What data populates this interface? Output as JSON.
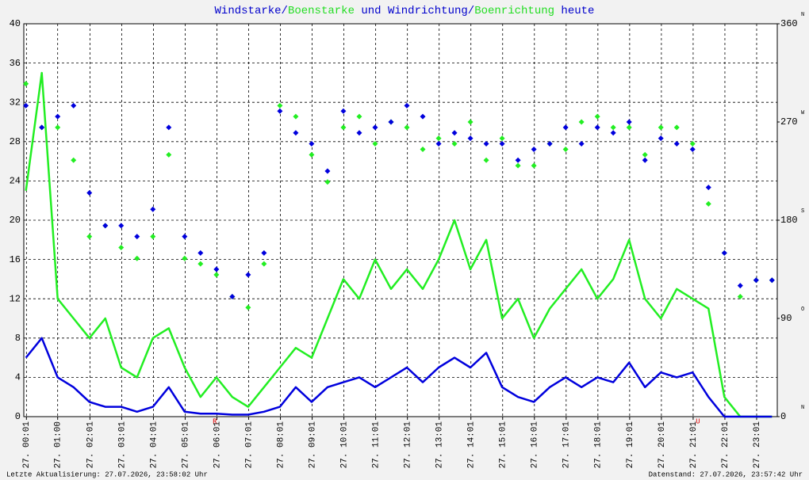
{
  "chart_data": {
    "type": "line",
    "title_parts": [
      {
        "text": "Windstarke",
        "color": "#0000cc"
      },
      {
        "text": "/",
        "color": "#0000cc"
      },
      {
        "text": "Boenstarke",
        "color": "#22dd22"
      },
      {
        "text": " und Windrichtung/",
        "color": "#0000cc"
      },
      {
        "text": "Boenrichtung",
        "color": "#22dd22"
      },
      {
        "text": " heute",
        "color": "#0000cc"
      }
    ],
    "x": [
      0,
      30,
      60,
      90,
      120,
      150,
      180,
      210,
      240,
      270,
      300,
      330,
      360,
      390,
      420,
      450,
      480,
      510,
      540,
      570,
      600,
      630,
      660,
      690,
      720,
      750,
      780,
      810,
      840,
      870,
      900,
      930,
      960,
      990,
      1020,
      1050,
      1080,
      1110,
      1140,
      1170,
      1200,
      1230,
      1260,
      1290,
      1320,
      1350,
      1380,
      1410
    ],
    "xlim": [
      -4,
      1420
    ],
    "xticks": [
      {
        "value": 1,
        "label": "27. 00:01"
      },
      {
        "value": 60,
        "label": "27. 01:00"
      },
      {
        "value": 121,
        "label": "27. 02:01"
      },
      {
        "value": 181,
        "label": "27. 03:01"
      },
      {
        "value": 241,
        "label": "27. 04:01"
      },
      {
        "value": 301,
        "label": "27. 05:01"
      },
      {
        "value": 361,
        "label": "27. 06:01"
      },
      {
        "value": 421,
        "label": "27. 07:01"
      },
      {
        "value": 481,
        "label": "27. 08:01"
      },
      {
        "value": 541,
        "label": "27. 09:01"
      },
      {
        "value": 601,
        "label": "27. 10:01"
      },
      {
        "value": 661,
        "label": "27. 11:01"
      },
      {
        "value": 721,
        "label": "27. 12:01"
      },
      {
        "value": 781,
        "label": "27. 13:01"
      },
      {
        "value": 841,
        "label": "27. 14:01"
      },
      {
        "value": 901,
        "label": "27. 15:01"
      },
      {
        "value": 961,
        "label": "27. 16:01"
      },
      {
        "value": 1021,
        "label": "27. 17:01"
      },
      {
        "value": 1081,
        "label": "27. 18:01"
      },
      {
        "value": 1141,
        "label": "27. 19:01"
      },
      {
        "value": 1201,
        "label": "27. 20:01"
      },
      {
        "value": 1261,
        "label": "27. 21:01"
      },
      {
        "value": 1321,
        "label": "27. 22:01"
      },
      {
        "value": 1381,
        "label": "27. 23:01"
      }
    ],
    "ylim": [
      0,
      40
    ],
    "yticks": [
      0,
      4,
      8,
      12,
      16,
      20,
      24,
      28,
      32,
      36,
      40
    ],
    "y2lim": [
      0,
      360
    ],
    "y2ticks": [
      0,
      90,
      180,
      270,
      360
    ],
    "y2tick_compass": [
      "N",
      "O",
      "S",
      "W",
      "N"
    ],
    "grid": true,
    "series": [
      {
        "name": "Boenstarke",
        "color": "#22ee22",
        "kind": "line",
        "values": [
          23,
          35,
          12,
          10,
          8,
          10,
          5,
          4,
          8,
          9,
          5,
          2,
          4,
          2,
          1,
          3,
          5,
          7,
          6,
          10,
          14,
          12,
          16,
          13,
          15,
          13,
          16,
          20,
          15,
          18,
          10,
          12,
          8,
          11,
          13,
          15,
          12,
          14,
          18,
          12,
          10,
          13,
          12,
          11,
          2,
          0,
          0,
          0
        ]
      },
      {
        "name": "Windstarke",
        "color": "#0000dd",
        "kind": "line",
        "values": [
          6,
          8,
          4,
          3,
          1.5,
          1,
          1,
          0.5,
          1,
          3,
          0.5,
          0.3,
          0.3,
          0.2,
          0.2,
          0.5,
          1,
          3,
          1.5,
          3,
          3.5,
          4,
          3,
          4,
          5,
          3.5,
          5,
          6,
          5,
          6.5,
          3,
          2,
          1.5,
          3,
          4,
          3,
          4,
          3.5,
          5.5,
          3,
          4.5,
          4,
          4.5,
          2,
          0,
          0,
          0,
          0
        ]
      },
      {
        "name": "Boenrichtung",
        "color": "#22ee22",
        "kind": "scatter",
        "axis": "y2",
        "values": [
          305,
          265,
          265,
          235,
          165,
          175,
          155,
          145,
          165,
          240,
          145,
          140,
          130,
          110,
          100,
          140,
          285,
          275,
          240,
          215,
          265,
          275,
          250,
          270,
          265,
          245,
          255,
          250,
          270,
          235,
          255,
          230,
          230,
          250,
          245,
          270,
          275,
          265,
          265,
          240,
          265,
          265,
          250,
          195,
          150,
          110,
          125,
          125
        ]
      },
      {
        "name": "Windrichtung",
        "color": "#0000dd",
        "kind": "scatter",
        "axis": "y2",
        "values": [
          285,
          265,
          275,
          285,
          205,
          175,
          175,
          165,
          190,
          265,
          165,
          150,
          135,
          110,
          130,
          150,
          280,
          260,
          250,
          225,
          280,
          260,
          265,
          270,
          285,
          275,
          250,
          260,
          255,
          250,
          250,
          235,
          245,
          250,
          265,
          250,
          265,
          260,
          270,
          235,
          255,
          250,
          245,
          210,
          150,
          120,
          125,
          125
        ]
      }
    ],
    "annotations": [
      {
        "text": "R",
        "x": 357,
        "color": "#dd0000"
      },
      {
        "text": "U",
        "x": 1270,
        "color": "#dd0000"
      }
    ],
    "footer_left": "Letzte Aktualisierung: 27.07.2026, 23:58:02 Uhr",
    "footer_right": "Datenstand: 27.07.2026, 23:57:42 Uhr"
  }
}
